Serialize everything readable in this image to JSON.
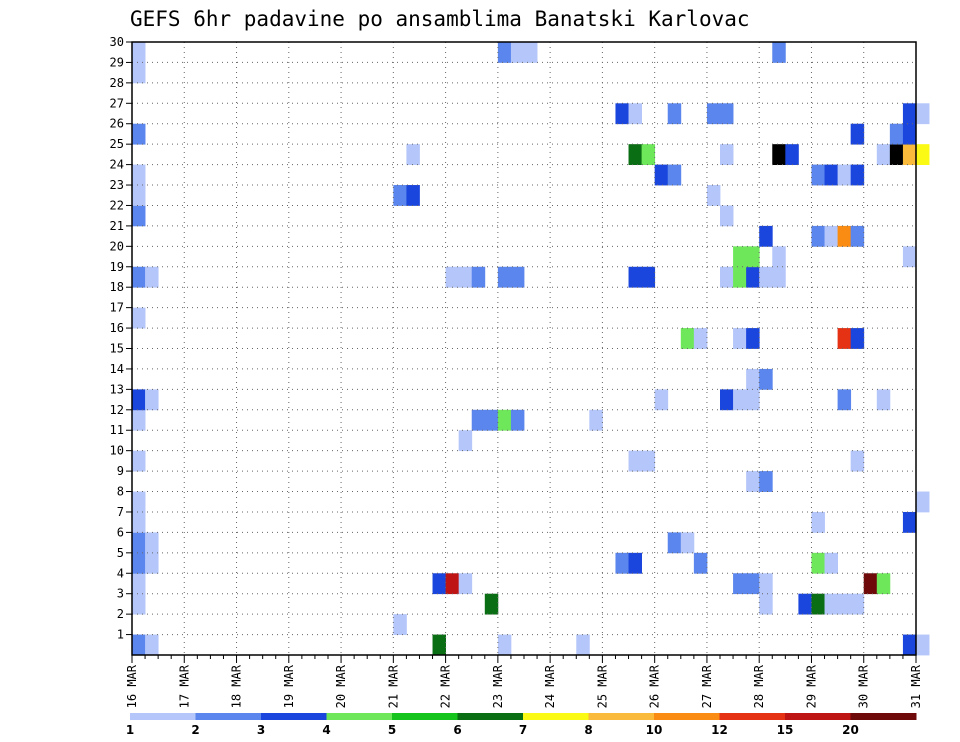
{
  "chart_data": {
    "type": "heatmap",
    "title": "GEFS 6hr padavine po ansamblima Banatski Karlovac",
    "x_labels": [
      "16 MAR",
      "17 MAR",
      "18 MAR",
      "19 MAR",
      "20 MAR",
      "21 MAR",
      "22 MAR",
      "23 MAR",
      "24 MAR",
      "25 MAR",
      "26 MAR",
      "27 MAR",
      "28 MAR",
      "29 MAR",
      "30 MAR",
      "31 MAR"
    ],
    "x_range_days": [
      0,
      15
    ],
    "steps_per_day": 4,
    "y_ticks": [
      1,
      2,
      3,
      4,
      5,
      6,
      7,
      8,
      9,
      10,
      11,
      12,
      13,
      14,
      15,
      16,
      17,
      18,
      19,
      20,
      21,
      22,
      23,
      24,
      25,
      26,
      27,
      28,
      29,
      30
    ],
    "y_range": [
      0,
      30
    ],
    "grid": "dotted",
    "colorbar": {
      "position": "bottom",
      "labels": [
        "1",
        "2",
        "3",
        "4",
        "5",
        "6",
        "7",
        "8",
        "10",
        "12",
        "15",
        "20"
      ],
      "colors": [
        "#b4c6fa",
        "#5a86ee",
        "#1a46de",
        "#6ee85a",
        "#16c41e",
        "#0a6e14",
        "#fafa14",
        "#faba3c",
        "#fa8c14",
        "#e63214",
        "#be1414",
        "#6e0a0a"
      ]
    },
    "cells": [
      [
        0,
        0,
        2
      ],
      [
        1,
        0,
        1
      ],
      [
        23,
        0,
        6
      ],
      [
        28,
        0,
        1
      ],
      [
        34,
        0,
        1
      ],
      [
        59,
        0,
        3
      ],
      [
        60,
        0,
        1
      ],
      [
        20,
        1,
        1
      ],
      [
        0,
        2,
        1
      ],
      [
        27,
        2,
        6
      ],
      [
        48,
        2,
        1
      ],
      [
        51,
        2,
        3
      ],
      [
        52,
        2,
        6
      ],
      [
        53,
        2,
        1
      ],
      [
        54,
        2,
        1
      ],
      [
        55,
        2,
        1
      ],
      [
        0,
        3,
        1
      ],
      [
        23,
        3,
        3
      ],
      [
        24,
        3,
        11
      ],
      [
        25,
        3,
        1
      ],
      [
        46,
        3,
        2
      ],
      [
        47,
        3,
        2
      ],
      [
        48,
        3,
        1
      ],
      [
        56,
        3,
        12
      ],
      [
        57,
        3,
        4
      ],
      [
        0,
        4,
        2
      ],
      [
        1,
        4,
        1
      ],
      [
        37,
        4,
        2
      ],
      [
        38,
        4,
        3
      ],
      [
        43,
        4,
        2
      ],
      [
        52,
        4,
        4
      ],
      [
        53,
        4,
        1
      ],
      [
        0,
        5,
        2
      ],
      [
        1,
        5,
        1
      ],
      [
        41,
        5,
        2
      ],
      [
        42,
        5,
        1
      ],
      [
        0,
        6,
        1
      ],
      [
        52,
        6,
        1
      ],
      [
        59,
        6,
        3
      ],
      [
        0,
        7,
        1
      ],
      [
        60,
        7,
        1
      ],
      [
        47,
        8,
        1
      ],
      [
        48,
        8,
        2
      ],
      [
        0,
        9,
        1
      ],
      [
        38,
        9,
        1
      ],
      [
        39,
        9,
        1
      ],
      [
        55,
        9,
        1
      ],
      [
        25,
        10,
        1
      ],
      [
        0,
        11,
        1
      ],
      [
        26,
        11,
        2
      ],
      [
        27,
        11,
        2
      ],
      [
        28,
        11,
        4
      ],
      [
        29,
        11,
        2
      ],
      [
        35,
        11,
        1
      ],
      [
        0,
        12,
        3
      ],
      [
        1,
        12,
        1
      ],
      [
        40,
        12,
        1
      ],
      [
        45,
        12,
        3
      ],
      [
        46,
        12,
        1
      ],
      [
        47,
        12,
        1
      ],
      [
        54,
        12,
        2
      ],
      [
        57,
        12,
        1
      ],
      [
        47,
        13,
        1
      ],
      [
        48,
        13,
        2
      ],
      [
        42,
        15,
        4
      ],
      [
        43,
        15,
        1
      ],
      [
        46,
        15,
        1
      ],
      [
        47,
        15,
        3
      ],
      [
        54,
        15,
        10
      ],
      [
        55,
        15,
        3
      ],
      [
        0,
        16,
        1
      ],
      [
        0,
        18,
        2
      ],
      [
        1,
        18,
        1
      ],
      [
        24,
        18,
        1
      ],
      [
        25,
        18,
        1
      ],
      [
        26,
        18,
        2
      ],
      [
        28,
        18,
        2
      ],
      [
        29,
        18,
        2
      ],
      [
        38,
        18,
        3
      ],
      [
        39,
        18,
        3
      ],
      [
        45,
        18,
        1
      ],
      [
        46,
        18,
        4
      ],
      [
        47,
        18,
        3
      ],
      [
        48,
        18,
        1
      ],
      [
        49,
        18,
        1
      ],
      [
        46,
        19,
        4
      ],
      [
        47,
        19,
        4
      ],
      [
        49,
        19,
        1
      ],
      [
        59,
        19,
        1
      ],
      [
        48,
        20,
        3
      ],
      [
        52,
        20,
        2
      ],
      [
        53,
        20,
        1
      ],
      [
        54,
        20,
        9
      ],
      [
        55,
        20,
        2
      ],
      [
        0,
        21,
        2
      ],
      [
        45,
        21,
        1
      ],
      [
        0,
        22,
        1
      ],
      [
        20,
        22,
        2
      ],
      [
        21,
        22,
        3
      ],
      [
        44,
        22,
        1
      ],
      [
        0,
        23,
        1
      ],
      [
        40,
        23,
        3
      ],
      [
        41,
        23,
        2
      ],
      [
        52,
        23,
        2
      ],
      [
        53,
        23,
        3
      ],
      [
        54,
        23,
        1
      ],
      [
        55,
        23,
        3
      ],
      [
        21,
        24,
        1
      ],
      [
        38,
        24,
        6
      ],
      [
        39,
        24,
        4
      ],
      [
        45,
        24,
        1
      ],
      [
        49,
        24,
        15
      ],
      [
        50,
        24,
        3
      ],
      [
        57,
        24,
        1
      ],
      [
        58,
        24,
        13
      ],
      [
        59,
        24,
        8
      ],
      [
        60,
        24,
        7
      ],
      [
        0,
        25,
        2
      ],
      [
        55,
        25,
        3
      ],
      [
        58,
        25,
        2
      ],
      [
        59,
        25,
        3
      ],
      [
        37,
        26,
        3
      ],
      [
        38,
        26,
        1
      ],
      [
        41,
        26,
        2
      ],
      [
        44,
        26,
        2
      ],
      [
        45,
        26,
        2
      ],
      [
        59,
        26,
        3
      ],
      [
        60,
        26,
        1
      ],
      [
        0,
        28,
        1
      ],
      [
        0,
        29,
        1
      ],
      [
        28,
        29,
        2
      ],
      [
        29,
        29,
        1
      ],
      [
        30,
        29,
        1
      ],
      [
        49,
        29,
        2
      ]
    ]
  }
}
